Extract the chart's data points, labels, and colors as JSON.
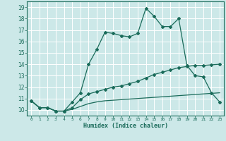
{
  "title": "",
  "xlabel": "Humidex (Indice chaleur)",
  "xlim": [
    -0.5,
    23.5
  ],
  "ylim": [
    9.5,
    19.5
  ],
  "xticks": [
    0,
    1,
    2,
    3,
    4,
    5,
    6,
    7,
    8,
    9,
    10,
    11,
    12,
    13,
    14,
    15,
    16,
    17,
    18,
    19,
    20,
    21,
    22,
    23
  ],
  "yticks": [
    10,
    11,
    12,
    13,
    14,
    15,
    16,
    17,
    18,
    19
  ],
  "bg_color": "#cce8e8",
  "grid_color": "#ffffff",
  "line_color": "#1a6b5a",
  "line1_x": [
    0,
    1,
    2,
    3,
    4,
    5,
    6,
    7,
    8,
    9,
    10,
    11,
    12,
    13,
    14,
    15,
    16,
    17,
    18,
    19,
    20,
    21,
    22,
    23
  ],
  "line1_y": [
    10.8,
    10.2,
    10.2,
    9.9,
    9.9,
    10.7,
    11.5,
    14.0,
    15.3,
    16.8,
    16.7,
    16.5,
    16.4,
    16.7,
    18.9,
    18.2,
    17.3,
    17.3,
    18.0,
    13.9,
    13.0,
    12.9,
    11.5,
    10.7
  ],
  "line2_x": [
    0,
    1,
    2,
    3,
    4,
    5,
    6,
    7,
    8,
    9,
    10,
    11,
    12,
    13,
    14,
    15,
    16,
    17,
    18,
    19,
    20,
    21,
    22,
    23
  ],
  "line2_y": [
    10.8,
    10.2,
    10.2,
    9.9,
    9.9,
    10.2,
    10.9,
    11.4,
    11.6,
    11.8,
    12.0,
    12.1,
    12.3,
    12.5,
    12.8,
    13.1,
    13.3,
    13.5,
    13.7,
    13.8,
    13.9,
    13.9,
    13.95,
    14.0
  ],
  "line3_x": [
    0,
    1,
    2,
    3,
    4,
    5,
    6,
    7,
    8,
    9,
    10,
    11,
    12,
    13,
    14,
    15,
    16,
    17,
    18,
    19,
    20,
    21,
    22,
    23
  ],
  "line3_y": [
    10.8,
    10.2,
    10.2,
    9.9,
    9.9,
    10.05,
    10.3,
    10.55,
    10.7,
    10.8,
    10.85,
    10.9,
    10.95,
    11.0,
    11.05,
    11.1,
    11.15,
    11.2,
    11.25,
    11.3,
    11.35,
    11.4,
    11.45,
    11.5
  ]
}
